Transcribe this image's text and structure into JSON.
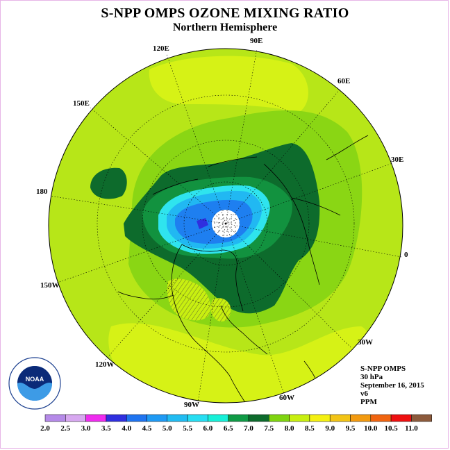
{
  "title": "S-NPP OMPS OZONE MIXING RATIO",
  "subtitle": "Northern Hemisphere",
  "longitude_labels": [
    "90E",
    "60E",
    "30E",
    "0",
    "30W",
    "60W",
    "90W",
    "120W",
    "150W",
    "180",
    "150E",
    "120E"
  ],
  "info": {
    "product": "S-NPP OMPS",
    "level": "30 hPa",
    "date": "September 16, 2015",
    "version": "v6",
    "units": "PPM"
  },
  "logo": {
    "text": "NOAA",
    "ring_text": "NATIONAL OCEANIC AND ATMOSPHERIC ADMINISTRATION · U.S. DEPARTMENT OF COMMERCE"
  },
  "colorbar": {
    "labels": [
      "2.0",
      "2.5",
      "3.0",
      "3.5",
      "4.0",
      "4.5",
      "5.0",
      "5.5",
      "6.0",
      "6.5",
      "7.0",
      "7.5",
      "8.0",
      "8.5",
      "9.0",
      "9.5",
      "10.0",
      "10.5",
      "11.0"
    ],
    "colors": [
      "#b58ae8",
      "#d7a8f0",
      "#ef2cef",
      "#2f2fdf",
      "#1f74f0",
      "#1f9af4",
      "#21bcf2",
      "#27def2",
      "#17f0d8",
      "#0f9a45",
      "#0d6b2c",
      "#7fd410",
      "#c8ef10",
      "#f4f012",
      "#f2c416",
      "#f29a10",
      "#f06410",
      "#ee1010",
      "#8c5a3c"
    ]
  },
  "colors": {
    "mean_field": "#b7e618",
    "dark_green": "#0d6b2c",
    "mid_green": "#12923f",
    "light_green": "#7fcd12",
    "yellow_green": "#d6f216",
    "blue": "#1e7ff0",
    "cyan": "#2fe4ee",
    "polar_night": "#ffffff"
  }
}
